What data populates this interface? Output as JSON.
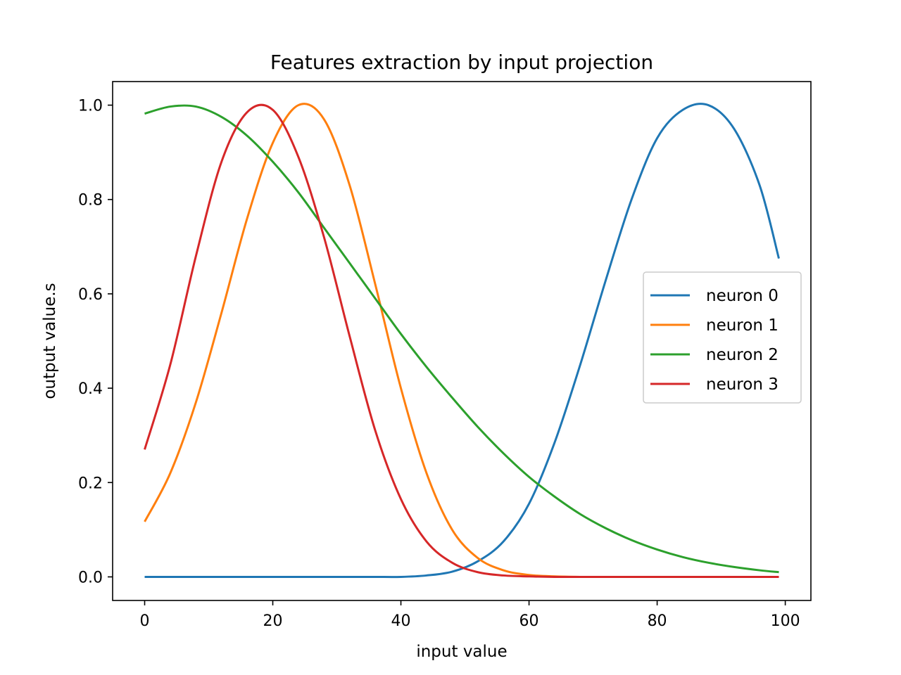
{
  "chart_data": {
    "type": "line",
    "title": "Features extraction by input projection",
    "xlabel": "input value",
    "ylabel": "output value.s",
    "xlim": [
      -5,
      104
    ],
    "ylim": [
      -0.05,
      1.05
    ],
    "xticks": [
      0,
      20,
      40,
      60,
      80,
      100
    ],
    "xtick_labels": [
      "0",
      "20",
      "40",
      "60",
      "80",
      "100"
    ],
    "yticks": [
      0.0,
      0.2,
      0.4,
      0.6,
      0.8,
      1.0
    ],
    "ytick_labels": [
      "0.0",
      "0.2",
      "0.4",
      "0.6",
      "0.8",
      "1.0"
    ],
    "grid": false,
    "legend_position": "center-right",
    "x": [
      0,
      4,
      8,
      12,
      16,
      20,
      24,
      28,
      32,
      36,
      40,
      44,
      48,
      52,
      56,
      60,
      64,
      68,
      72,
      76,
      80,
      84,
      88,
      92,
      96,
      99
    ],
    "series": [
      {
        "name": "neuron 0",
        "color": "#1f77b4",
        "values": [
          0.0,
          0.0,
          0.0,
          0.0,
          0.0,
          0.0,
          0.0,
          0.0,
          0.0,
          0.0,
          0.0,
          0.003,
          0.011,
          0.033,
          0.075,
          0.155,
          0.285,
          0.45,
          0.63,
          0.8,
          0.93,
          0.99,
          1.0,
          0.95,
          0.83,
          0.675
        ]
      },
      {
        "name": "neuron 1",
        "color": "#ff7f0e",
        "values": [
          0.117,
          0.22,
          0.37,
          0.56,
          0.76,
          0.92,
          1.0,
          0.97,
          0.83,
          0.62,
          0.4,
          0.22,
          0.1,
          0.04,
          0.014,
          0.004,
          0.001,
          0.0,
          0.0,
          0.0,
          0.0,
          0.0,
          0.0,
          0.0,
          0.0,
          0.0
        ]
      },
      {
        "name": "neuron 2",
        "color": "#2ca02c",
        "values": [
          0.982,
          0.997,
          0.997,
          0.975,
          0.935,
          0.88,
          0.815,
          0.74,
          0.665,
          0.59,
          0.515,
          0.445,
          0.38,
          0.318,
          0.262,
          0.212,
          0.17,
          0.133,
          0.103,
          0.078,
          0.058,
          0.042,
          0.03,
          0.021,
          0.014,
          0.01
        ]
      },
      {
        "name": "neuron 3",
        "color": "#d62728",
        "values": [
          0.27,
          0.45,
          0.68,
          0.88,
          0.985,
          0.99,
          0.89,
          0.72,
          0.51,
          0.31,
          0.165,
          0.075,
          0.03,
          0.01,
          0.003,
          0.001,
          0.0,
          0.0,
          0.0,
          0.0,
          0.0,
          0.0,
          0.0,
          0.0,
          0.0,
          0.0
        ]
      }
    ]
  }
}
